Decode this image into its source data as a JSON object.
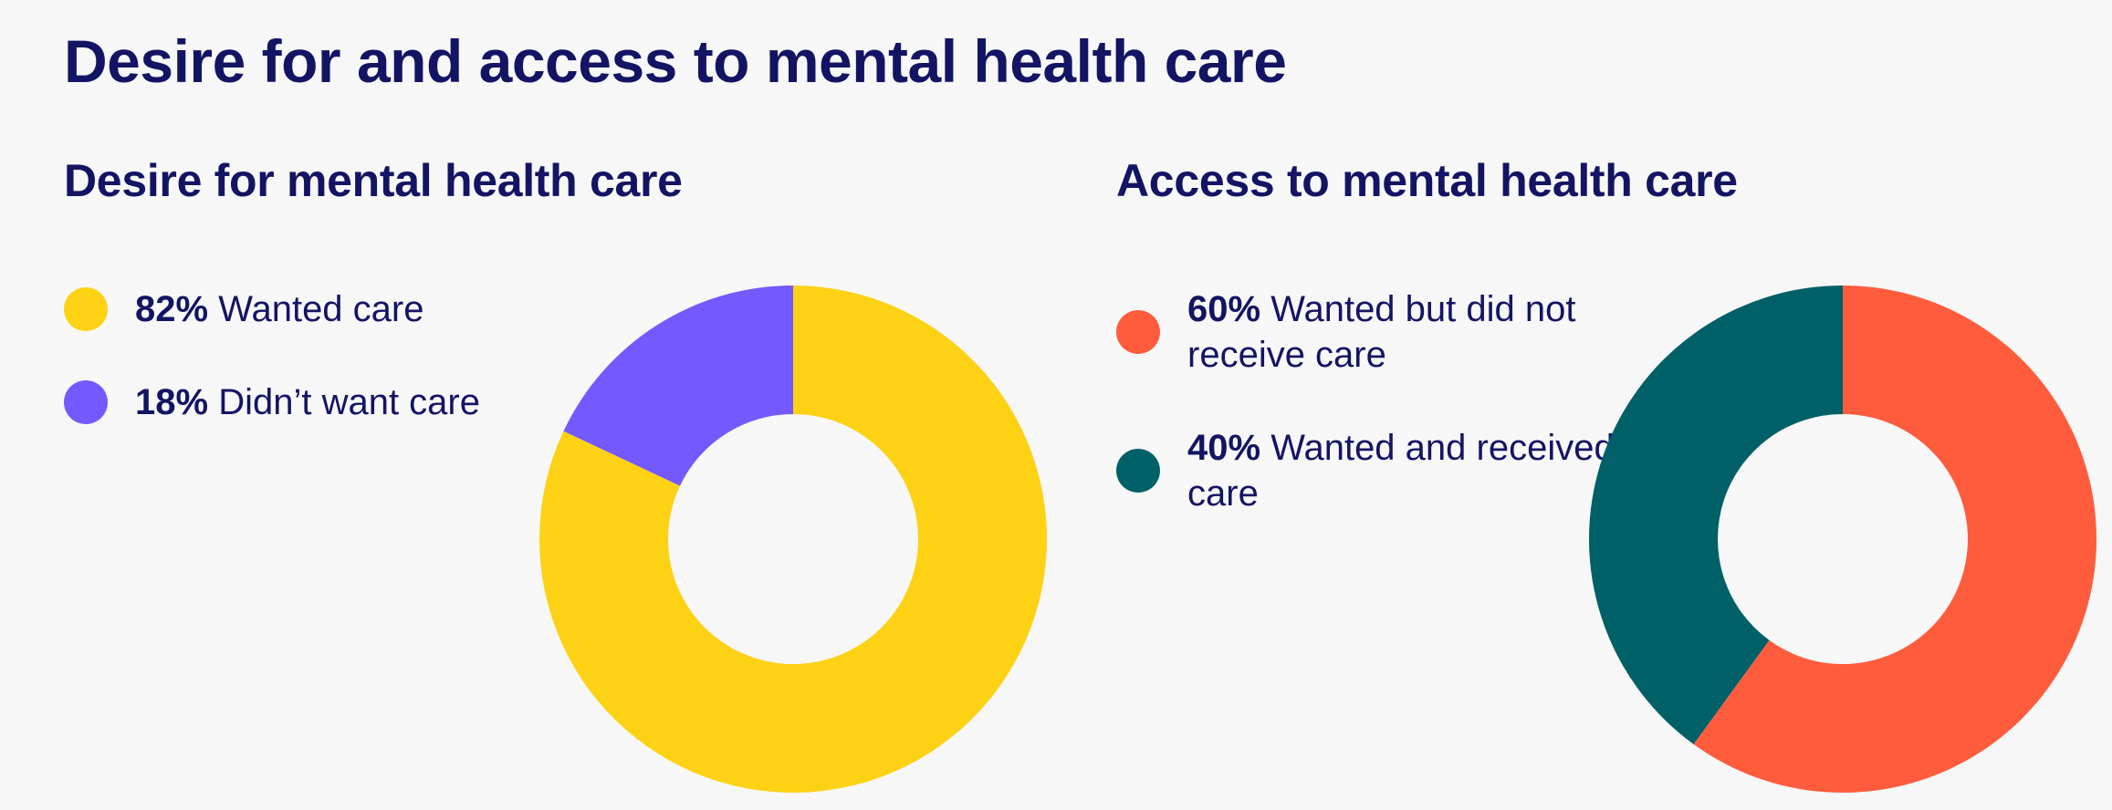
{
  "page": {
    "title": "Desire for and access to mental health care"
  },
  "chart_data": [
    {
      "type": "pie",
      "title": "Desire for mental health care",
      "slices": [
        {
          "pct": "82%",
          "label": "Wanted care",
          "value": 82,
          "color": "#FDD215"
        },
        {
          "pct": "18%",
          "label": "Didn’t want care",
          "value": 18,
          "color": "#7459FE"
        }
      ],
      "donut": true,
      "legend_position": "left"
    },
    {
      "type": "pie",
      "title": "Access to mental health care",
      "slices": [
        {
          "pct": "60%",
          "label": "Wanted but did not receive care",
          "value": 60,
          "color": "#FF5C3E"
        },
        {
          "pct": "40%",
          "label": "Wanted and received care",
          "value": 40,
          "color": "#006068"
        }
      ],
      "donut": true,
      "legend_position": "left"
    }
  ]
}
